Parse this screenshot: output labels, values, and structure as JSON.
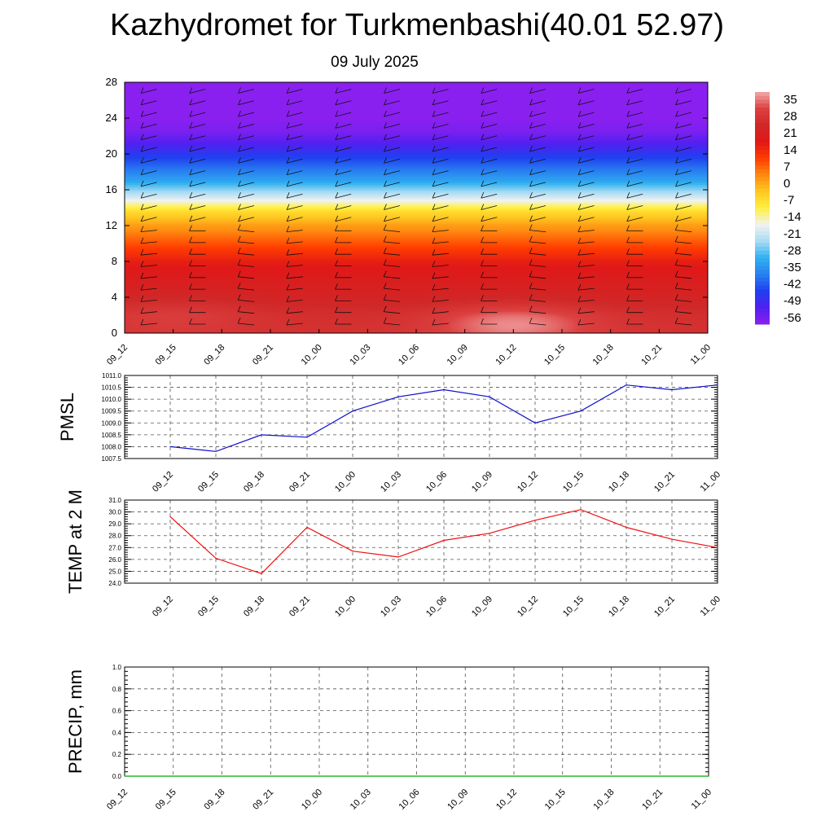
{
  "header": {
    "title": "Kazhydromet for Turkmenbashi(40.01 52.97)",
    "date": "09 July 2025"
  },
  "chart_data": [
    {
      "type": "heatmap",
      "title": "",
      "xlabel": "",
      "ylabel": "",
      "x": [
        "09_12",
        "09_15",
        "09_18",
        "09_21",
        "10_00",
        "10_03",
        "10_06",
        "10_09",
        "10_12",
        "10_15",
        "10_18",
        "10_21",
        "11_00"
      ],
      "yticks": [
        "0",
        "4",
        "8",
        "12",
        "16",
        "20",
        "24",
        "28"
      ],
      "ylim": [
        0,
        28
      ],
      "colorbar": {
        "labels": [
          "35",
          "28",
          "21",
          "14",
          "7",
          "0",
          "-7",
          "-14",
          "-21",
          "-28",
          "-35",
          "-42",
          "-49",
          "-56"
        ],
        "range": [
          -63,
          42
        ],
        "colors": [
          "#8a20f0",
          "#5020f0",
          "#2040f0",
          "#2880f0",
          "#30b0f0",
          "#a8dcf4",
          "#f2f2f0",
          "#fff040",
          "#ffc820",
          "#ff8810",
          "#ff3c00",
          "#e01818",
          "#d02828",
          "#dc4040",
          "#f2a8a8"
        ]
      },
      "profile_levels": [
        0,
        2,
        4,
        6,
        8,
        10,
        12,
        13.5,
        15,
        17,
        19,
        21,
        22.5,
        24,
        28
      ],
      "profile_values": [
        30,
        29,
        25,
        22,
        18,
        10,
        2,
        -6,
        -20,
        -35,
        -45,
        -55,
        -61,
        -63,
        -63
      ],
      "warm_cores": [
        {
          "x": "09_15",
          "level": 2,
          "value": 33
        },
        {
          "x": "10_12",
          "level": 1,
          "value": 40
        }
      ],
      "barbs": "wind barbs at each time step and level",
      "grid": false
    },
    {
      "type": "line",
      "ylabel": "PMSL",
      "x": [
        "09_12",
        "09_15",
        "09_18",
        "09_21",
        "10_00",
        "10_03",
        "10_06",
        "10_09",
        "10_12",
        "10_15",
        "10_18",
        "10_21",
        "11_00"
      ],
      "values": [
        1008.0,
        1007.8,
        1008.5,
        1008.4,
        1009.5,
        1010.1,
        1010.4,
        1010.1,
        1009.0,
        1009.5,
        1010.6,
        1010.4,
        1010.6
      ],
      "ylim": [
        1007.5,
        1011.0
      ],
      "yticks": [
        "1007.5",
        "1008.0",
        "1008.5",
        "1009.0",
        "1009.5",
        "1010.0",
        "1010.5",
        "1011.0"
      ],
      "color": "#1010cc",
      "grid": true
    },
    {
      "type": "line",
      "ylabel": "TEMP at 2 M",
      "x": [
        "09_12",
        "09_15",
        "09_18",
        "09_21",
        "10_00",
        "10_03",
        "10_06",
        "10_09",
        "10_12",
        "10_15",
        "10_18",
        "10_21",
        "11_00"
      ],
      "values": [
        29.6,
        26.1,
        24.8,
        28.7,
        26.7,
        26.2,
        27.6,
        28.2,
        29.3,
        30.2,
        28.7,
        27.7,
        27.0
      ],
      "ylim": [
        24.0,
        31.0
      ],
      "yticks": [
        "24.0",
        "25.0",
        "26.0",
        "27.0",
        "28.0",
        "29.0",
        "30.0",
        "31.0"
      ],
      "color": "#ee1010",
      "grid": true
    },
    {
      "type": "line",
      "ylabel": "PRECIP, mm",
      "x": [
        "09_12",
        "09_15",
        "09_18",
        "09_21",
        "10_00",
        "10_03",
        "10_06",
        "10_09",
        "10_12",
        "10_15",
        "10_18",
        "10_21",
        "11_00"
      ],
      "values": [
        0,
        0,
        0,
        0,
        0,
        0,
        0,
        0,
        0,
        0,
        0,
        0,
        0
      ],
      "ylim": [
        0.0,
        1.0
      ],
      "yticks": [
        "0.0",
        "0.2",
        "0.4",
        "0.6",
        "0.8",
        "1.0"
      ],
      "color": "#00aa00",
      "grid": true
    }
  ]
}
